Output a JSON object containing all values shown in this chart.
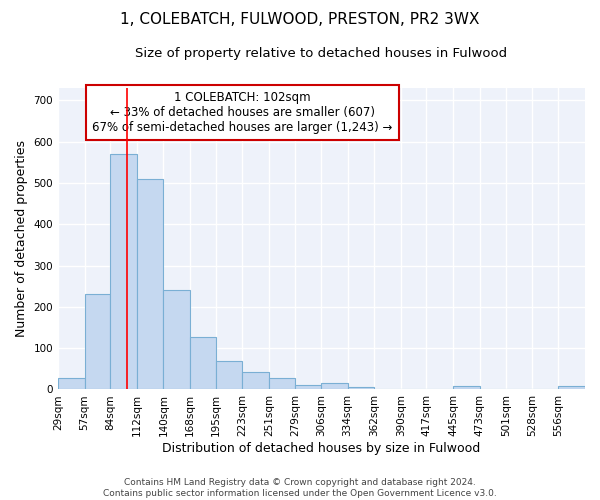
{
  "title": "1, COLEBATCH, FULWOOD, PRESTON, PR2 3WX",
  "subtitle": "Size of property relative to detached houses in Fulwood",
  "xlabel": "Distribution of detached houses by size in Fulwood",
  "ylabel": "Number of detached properties",
  "footer_line1": "Contains HM Land Registry data © Crown copyright and database right 2024.",
  "footer_line2": "Contains public sector information licensed under the Open Government Licence v3.0.",
  "annotation_line1": "1 COLEBATCH: 102sqm",
  "annotation_line2": "← 33% of detached houses are smaller (607)",
  "annotation_line3": "67% of semi-detached houses are larger (1,243) →",
  "bar_color": "#c5d8f0",
  "bar_edge_color": "#7aafd4",
  "red_line_x": 102,
  "bin_edges": [
    29,
    57,
    84,
    112,
    140,
    168,
    195,
    223,
    251,
    279,
    306,
    334,
    362,
    390,
    417,
    445,
    473,
    501,
    528,
    556,
    584
  ],
  "bar_heights": [
    28,
    232,
    570,
    510,
    242,
    126,
    70,
    42,
    27,
    10,
    15,
    5,
    2,
    1,
    1,
    8,
    2,
    1,
    1,
    8
  ],
  "ylim": [
    0,
    730
  ],
  "yticks": [
    0,
    100,
    200,
    300,
    400,
    500,
    600,
    700
  ],
  "bg_color": "#ffffff",
  "plot_bg_color": "#eef2fa",
  "grid_color": "#ffffff",
  "annotation_box_color": "#ffffff",
  "annotation_box_edge_color": "#cc0000",
  "title_fontsize": 11,
  "subtitle_fontsize": 9.5,
  "axis_label_fontsize": 9,
  "tick_fontsize": 7.5,
  "annotation_fontsize": 8.5,
  "footer_fontsize": 6.5
}
